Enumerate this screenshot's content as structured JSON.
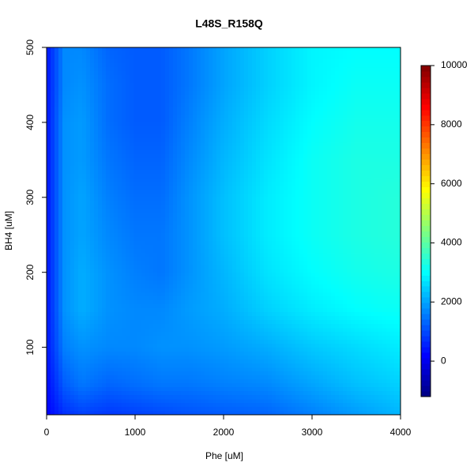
{
  "chart_data": {
    "type": "contour",
    "title": "L48S_R158Q",
    "x_label": "Phe [uM]",
    "y_label": "BH4 [uM]",
    "x": [
      0,
      200,
      400,
      700,
      1000,
      1300,
      1600,
      2000,
      2500,
      3000,
      3500,
      4000
    ],
    "y": [
      10,
      50,
      100,
      150,
      200,
      250,
      300,
      350,
      400,
      450,
      500
    ],
    "z": [
      [
        200,
        700,
        900,
        800,
        900,
        1000,
        1100,
        1200,
        1300,
        1600,
        1900,
        2200
      ],
      [
        300,
        1200,
        1500,
        1300,
        1400,
        1500,
        1500,
        1600,
        1700,
        2000,
        2300,
        2500
      ],
      [
        400,
        1600,
        1800,
        1700,
        1700,
        1800,
        1800,
        1900,
        2100,
        2400,
        2600,
        2800
      ],
      [
        400,
        1800,
        2100,
        1800,
        1700,
        1700,
        1900,
        2100,
        2500,
        2800,
        3000,
        3100
      ],
      [
        400,
        1800,
        2100,
        1800,
        1600,
        1500,
        1800,
        2200,
        2700,
        3000,
        3200,
        3300
      ],
      [
        400,
        1800,
        2000,
        1700,
        1500,
        1500,
        1800,
        2300,
        2800,
        3100,
        3300,
        3400
      ],
      [
        400,
        1800,
        2000,
        1600,
        1400,
        1400,
        1800,
        2300,
        2800,
        3100,
        3300,
        3400
      ],
      [
        400,
        1800,
        1900,
        1500,
        1300,
        1300,
        1700,
        2200,
        2700,
        3100,
        3300,
        3300
      ],
      [
        400,
        1800,
        1900,
        1400,
        1200,
        1200,
        1600,
        2100,
        2600,
        3000,
        3200,
        3200
      ],
      [
        400,
        1700,
        1800,
        1400,
        1200,
        1200,
        1500,
        2000,
        2500,
        2900,
        3100,
        3100
      ],
      [
        400,
        1700,
        1700,
        1300,
        1200,
        1200,
        1500,
        2000,
        2500,
        2900,
        3000,
        3000
      ]
    ],
    "xlim": [
      0,
      4000
    ],
    "ylim": [
      10,
      500
    ],
    "xticks": [
      0,
      1000,
      2000,
      3000,
      4000
    ],
    "yticks": [
      100,
      200,
      300,
      400,
      500
    ],
    "zlim": [
      -1200,
      10000
    ],
    "zticks": [
      0,
      2000,
      4000,
      6000,
      8000,
      10000
    ],
    "colormap": "jet"
  }
}
